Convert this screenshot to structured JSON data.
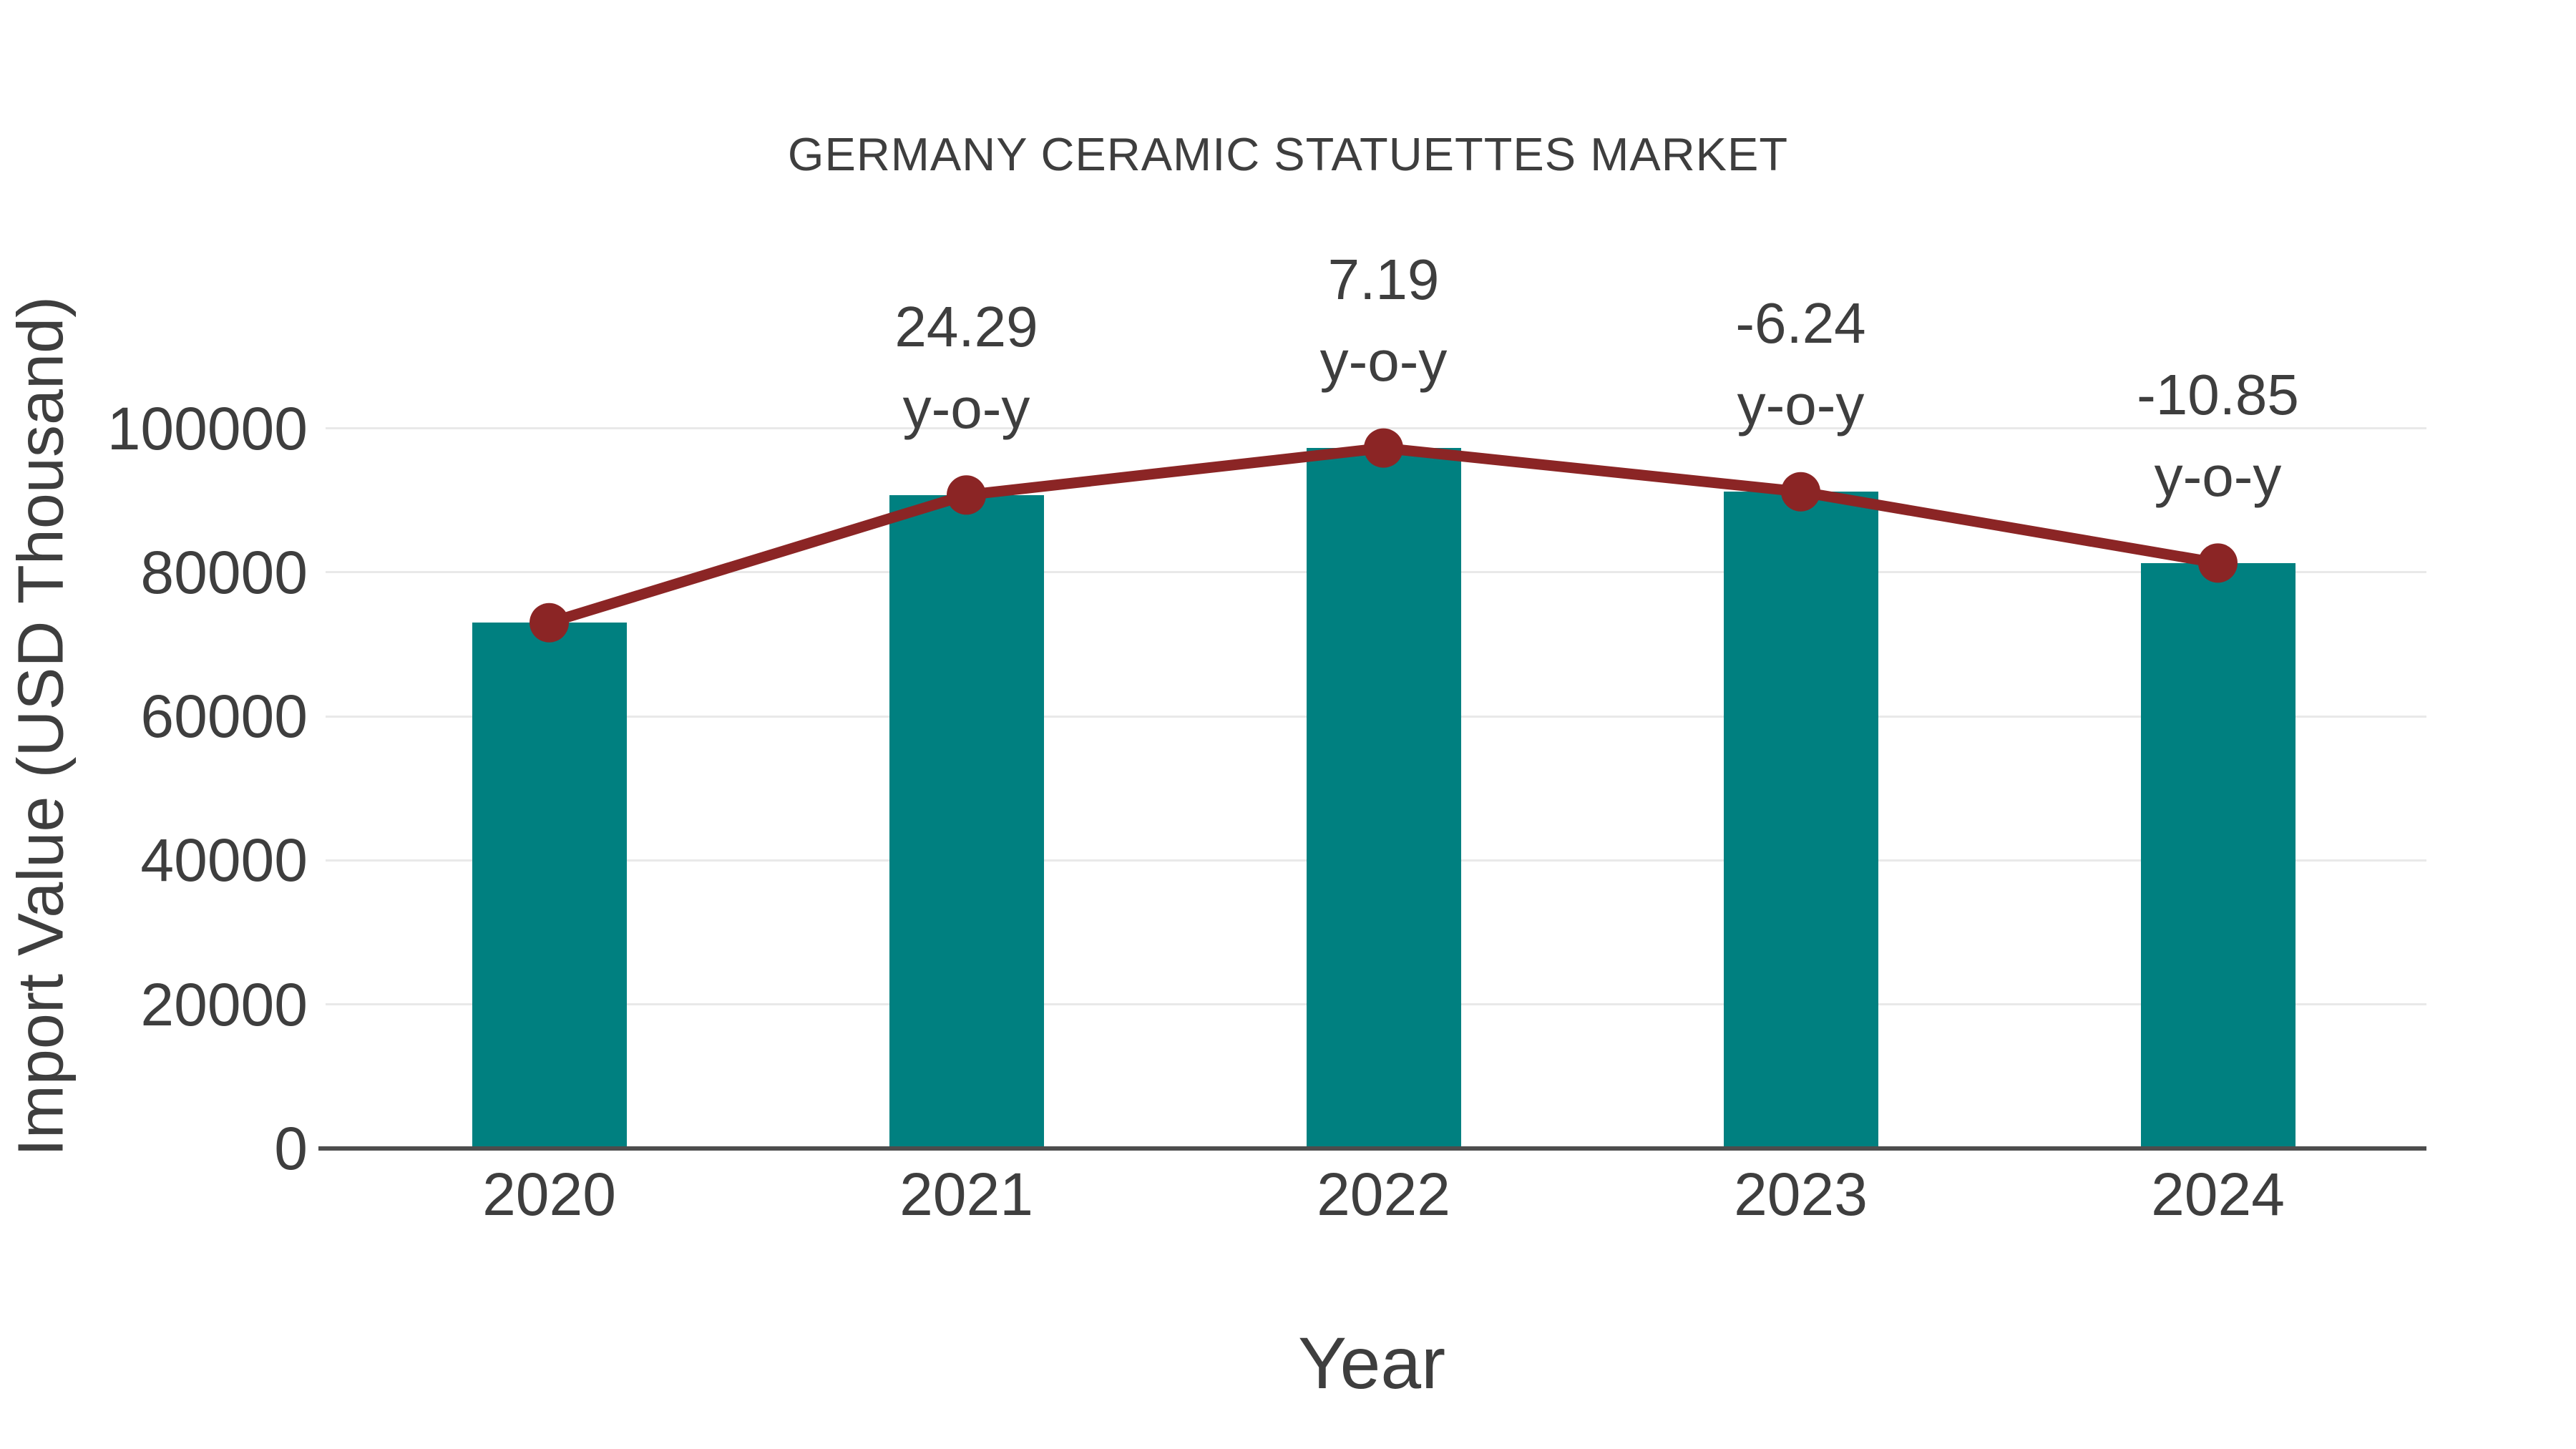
{
  "colors": {
    "bar": "#008080",
    "line": "#8b2525",
    "text": "#3e3e3e",
    "grid": "#e9e9e9",
    "axis": "#4d4d4d",
    "background": "#ffffff"
  },
  "chart_data": {
    "type": "bar",
    "subtype": "bar-with-line-overlay",
    "title": "GERMANY CERAMIC STATUETTES MARKET",
    "xlabel": "Year",
    "ylabel": "Import Value (USD Thousand)",
    "categories": [
      "2020",
      "2021",
      "2022",
      "2023",
      "2024"
    ],
    "series": [
      {
        "name": "import-value-bars",
        "type": "bar",
        "color": "#008080",
        "values": [
          73000,
          90730,
          97255,
          91185,
          81290
        ]
      },
      {
        "name": "yoy-growth-line",
        "type": "line",
        "color": "#8b2525",
        "marker": "circle",
        "plotted_at": "bar-top-values",
        "yoy_percent": [
          null,
          24.29,
          7.19,
          -6.24,
          -10.85
        ],
        "labels": [
          "",
          "24.29",
          "7.19",
          "-6.24",
          "-10.85"
        ],
        "label_suffix": "y-o-y"
      }
    ],
    "ylim": [
      0,
      100000
    ],
    "yticks": [
      0,
      20000,
      40000,
      60000,
      80000,
      100000
    ],
    "grid": true,
    "legend": "none"
  }
}
